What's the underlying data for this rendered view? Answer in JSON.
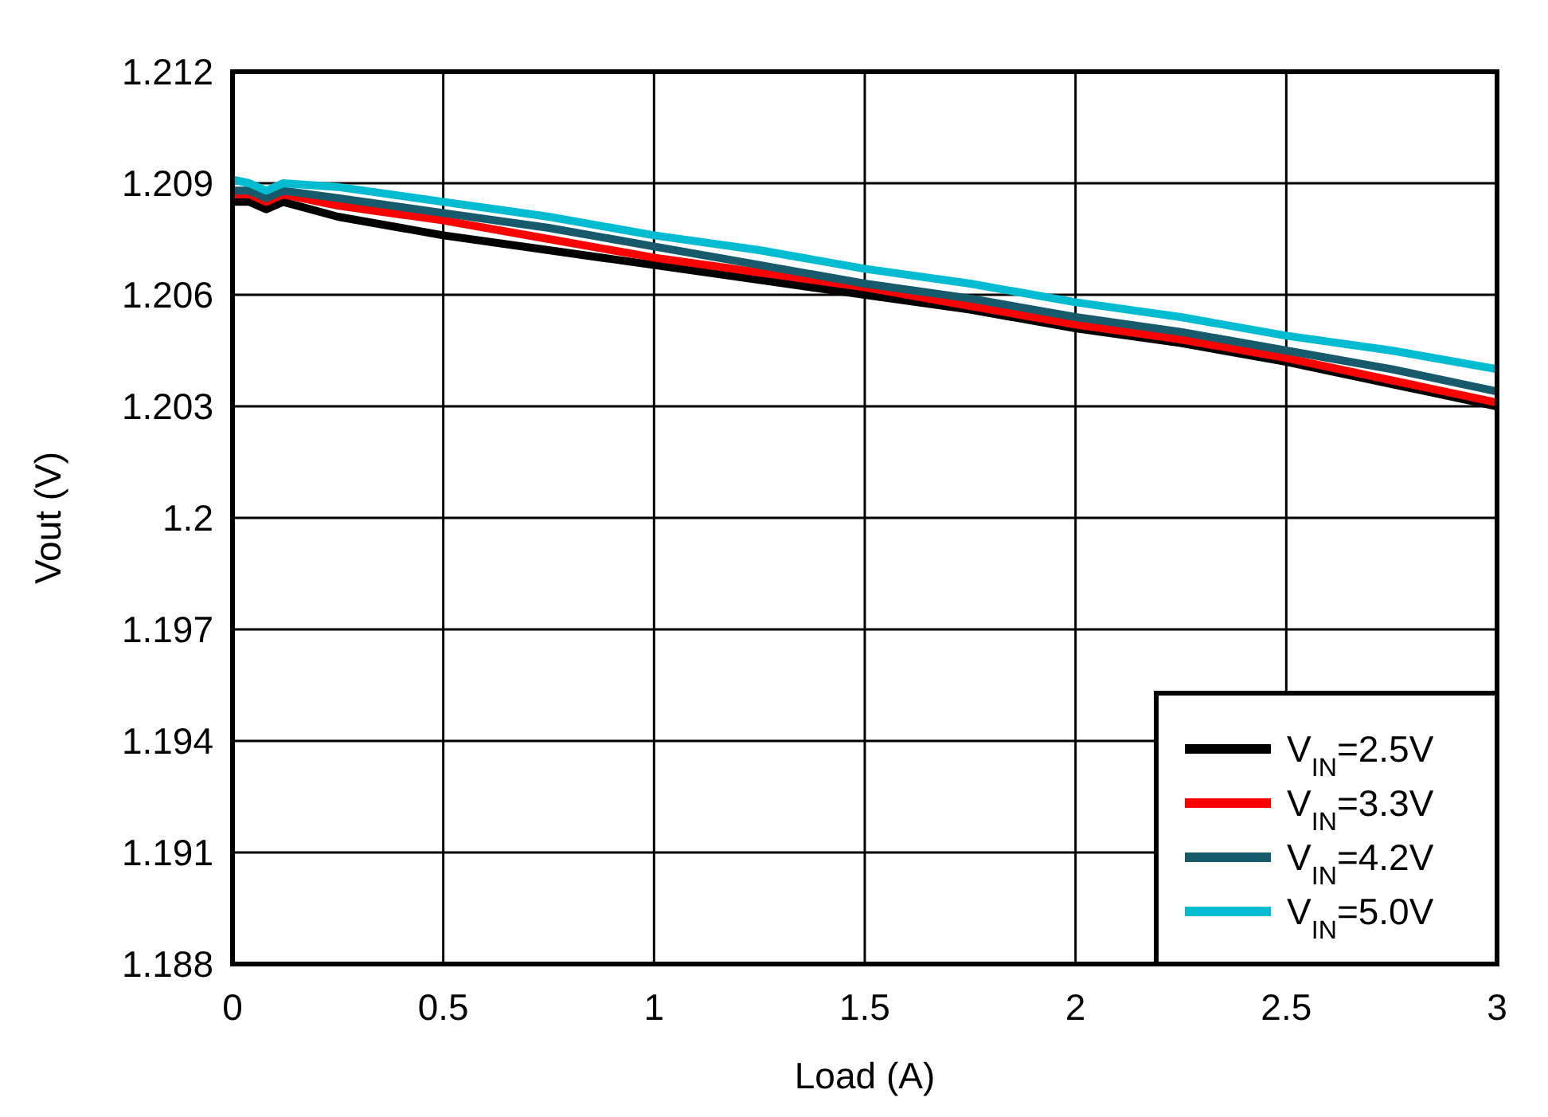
{
  "chart_data": {
    "type": "line",
    "xlabel": "Load (A)",
    "ylabel": "Vout (V)",
    "xlim": [
      0,
      3
    ],
    "ylim": [
      1.188,
      1.212
    ],
    "xticks": [
      0,
      0.5,
      1,
      1.5,
      2,
      2.5,
      3
    ],
    "yticks": [
      1.188,
      1.191,
      1.194,
      1.197,
      1.2,
      1.203,
      1.206,
      1.209,
      1.212
    ],
    "grid": true,
    "legend": "bottom right",
    "line_style": "solid",
    "x": [
      0,
      0.04,
      0.08,
      0.12,
      0.25,
      0.5,
      0.75,
      1,
      1.25,
      1.5,
      1.75,
      2,
      2.25,
      2.5,
      2.75,
      3
    ],
    "series": [
      {
        "name": "V$_{IN}$=2.5V",
        "color": "#000000",
        "values": [
          1.2085,
          1.2085,
          1.2083,
          1.2085,
          1.2081,
          1.2076,
          1.2072,
          1.2068,
          1.2064,
          1.206,
          1.2056,
          1.2051,
          1.2047,
          1.2042,
          1.2036,
          1.203
        ]
      },
      {
        "name": "V$_{IN}$=3.3V",
        "color": "#ff0000",
        "values": [
          1.2087,
          1.2087,
          1.2085,
          1.2087,
          1.2084,
          1.208,
          1.2075,
          1.207,
          1.2066,
          1.2062,
          1.2057,
          1.2052,
          1.2048,
          1.2043,
          1.2037,
          1.2031
        ]
      },
      {
        "name": "V$_{IN}$=4.2V",
        "color": "#165a6b",
        "values": [
          1.2088,
          1.2088,
          1.2086,
          1.2088,
          1.2086,
          1.2082,
          1.2078,
          1.2073,
          1.2068,
          1.2063,
          1.2059,
          1.2054,
          1.205,
          1.2045,
          1.204,
          1.2034
        ]
      },
      {
        "name": "V$_{IN}$=5.0V",
        "color": "#00bcd0",
        "values": [
          1.2091,
          1.209,
          1.2088,
          1.209,
          1.2089,
          1.2085,
          1.2081,
          1.2076,
          1.2072,
          1.2067,
          1.2063,
          1.2058,
          1.2054,
          1.2049,
          1.2045,
          1.204
        ]
      }
    ]
  }
}
